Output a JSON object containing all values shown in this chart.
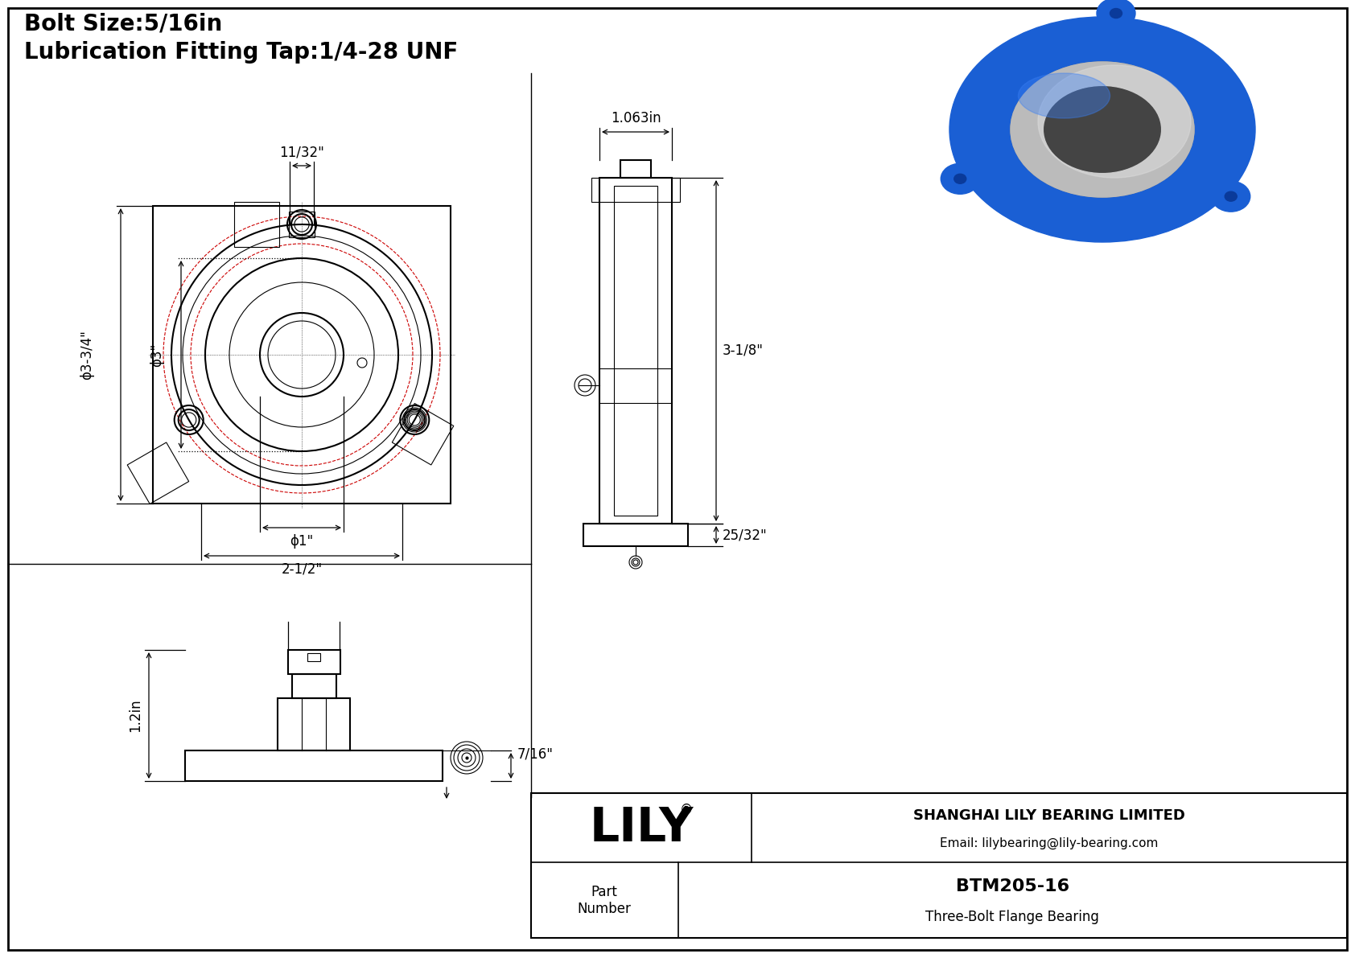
{
  "background_color": "#ffffff",
  "line_color": "#000000",
  "red_color": "#cc0000",
  "title_line1": "Bolt Size:5/16in",
  "title_line2": "Lubrication Fitting Tap:1/4-28 UNF",
  "title_fontsize": 20,
  "company_name": "SHANGHAI LILY BEARING LIMITED",
  "company_email": "Email: lilybearing@lily-bearing.com",
  "part_label": "Part\nNumber",
  "part_number": "BTM205-16",
  "part_desc": "Three-Bolt Flange Bearing",
  "lily_logo": "LILY",
  "dim_11_32": "11/32\"",
  "dim_3_3_4": "ϕ3-3/4\"",
  "dim_3": "ϕ3\"",
  "dim_1": "ϕ1\"",
  "dim_2_1_2": "2-1/2\"",
  "dim_1_063": "1.063in",
  "dim_3_1_8": "3-1/8\"",
  "dim_25_32": "25/32\"",
  "dim_7_16": "7/16\"",
  "dim_1_2": "1.2in",
  "fontsize_dim": 12,
  "lw_main": 1.5,
  "lw_thin": 0.8,
  "lw_dim": 0.9
}
